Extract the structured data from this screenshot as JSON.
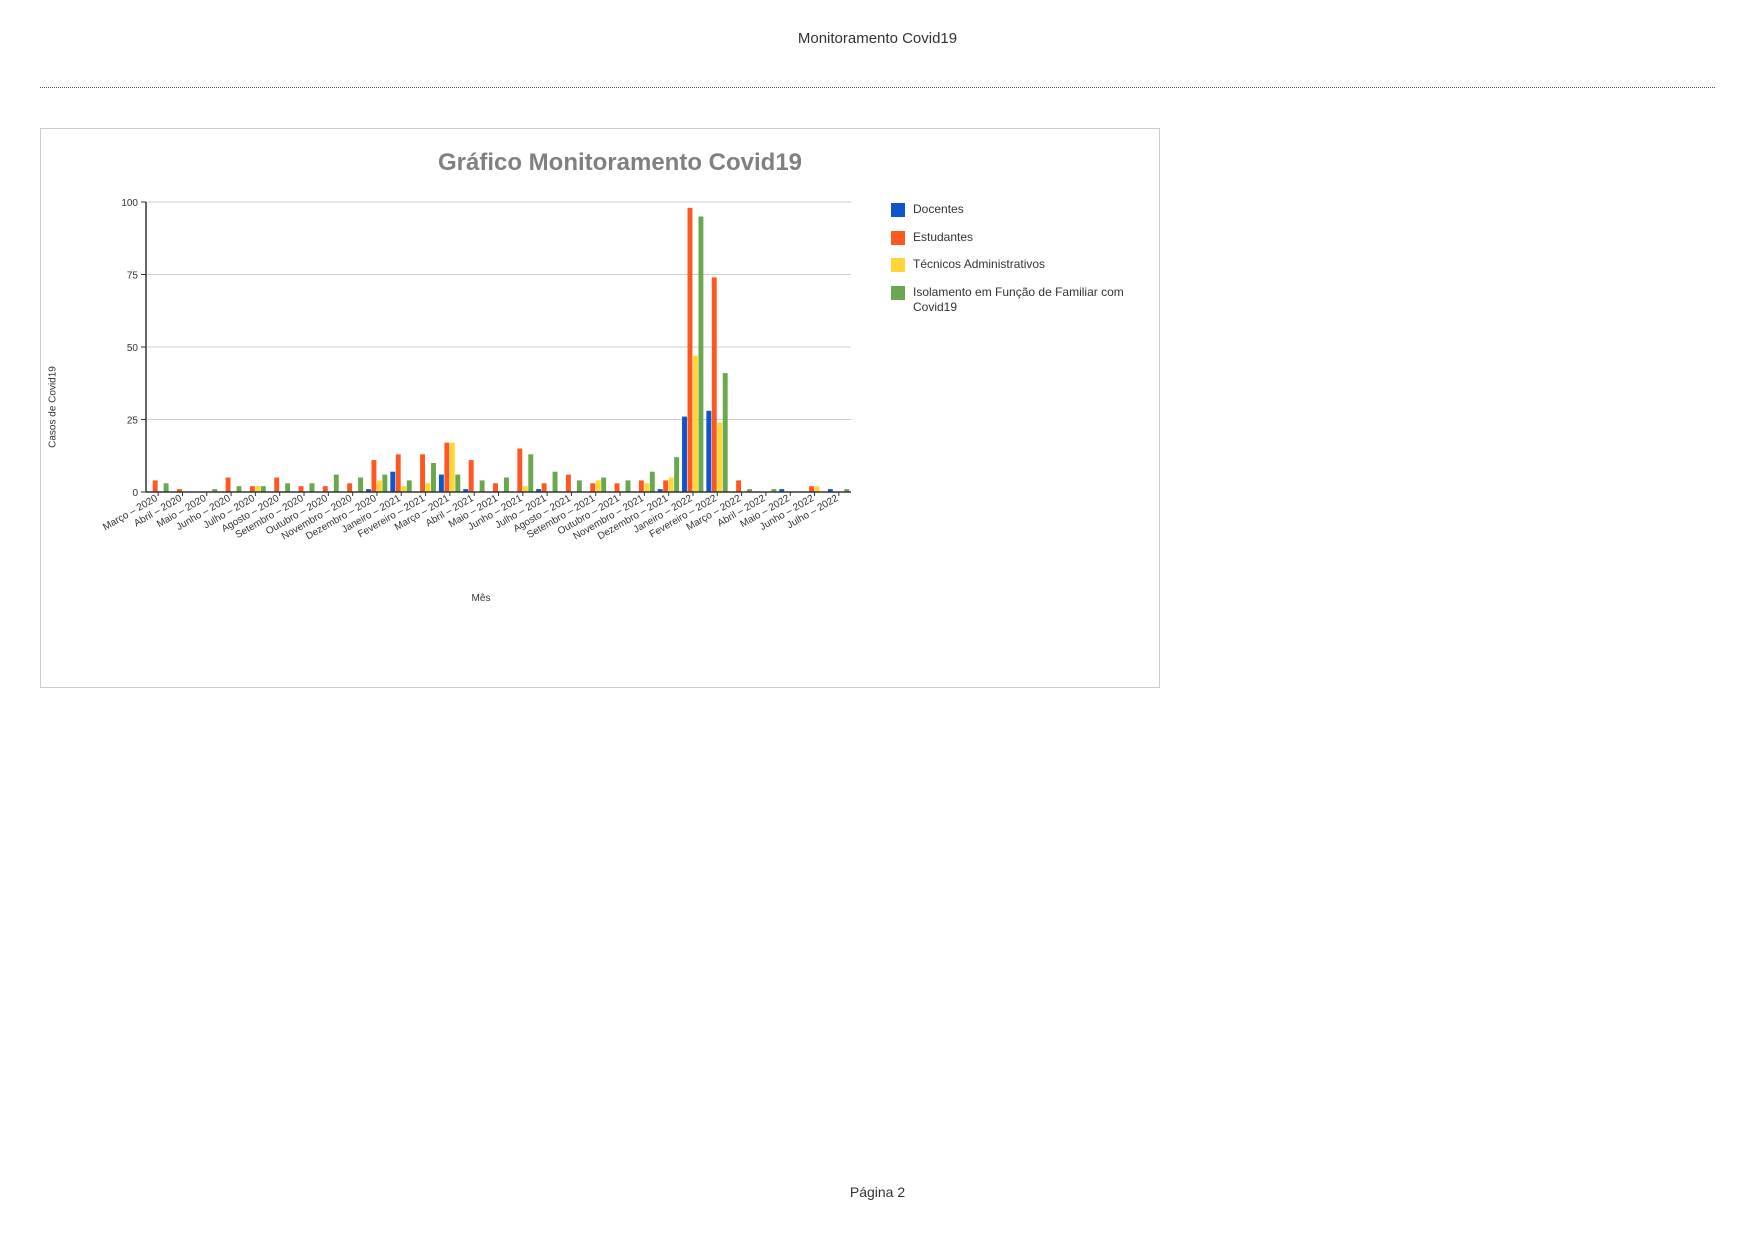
{
  "doc_header": "Monitoramento Covid19",
  "page_footer": "Página 2",
  "chart": {
    "type": "bar",
    "title": "Gráfico Monitoramento Covid19",
    "title_color": "#808080",
    "title_fontsize": 24,
    "x_axis_title": "Mês",
    "y_axis_title": "Casos de Covid19",
    "ylim": [
      0,
      100
    ],
    "ytick_step": 25,
    "yticks": [
      0,
      25,
      50,
      75,
      100
    ],
    "background_color": "#ffffff",
    "axis_color": "#333333",
    "grid_color": "#cccccc",
    "grid": true,
    "border_color": "#cccccc",
    "tick_label_fontsize": 10,
    "xlabel_rotation_deg": -30,
    "bar_group_width": 0.9,
    "categories": [
      "Março – 2020",
      "Abril – 2020",
      "Maio – 2020",
      "Junho – 2020",
      "Julho – 2020",
      "Agosto – 2020",
      "Setembro – 2020",
      "Outubro – 2020",
      "Novembro – 2020",
      "Dezembro – 2020",
      "Janeiro – 2021",
      "Fevereiro – 2021",
      "Março – 2021",
      "Abril – 2021",
      "Maio – 2021",
      "Junho – 2021",
      "Julho – 2021",
      "Agosto – 2021",
      "Setembro – 2021",
      "Outubro – 2021",
      "Novembro – 2021",
      "Dezembro – 2021",
      "Janeiro – 2022",
      "Fevereiro – 2022",
      "Março – 2022",
      "Abril – 2022",
      "Maio – 2022",
      "Junho – 2022",
      "Julho – 2022"
    ],
    "series": [
      {
        "name": "Docentes",
        "color": "#1155cc",
        "values": [
          0,
          0,
          0,
          0,
          0,
          0,
          0,
          0,
          0,
          1,
          7,
          0,
          6,
          1,
          0,
          0,
          1,
          0,
          0,
          0,
          0,
          1,
          26,
          28,
          0,
          0,
          1,
          0,
          1
        ]
      },
      {
        "name": "Estudantes",
        "color": "#ff5722",
        "values": [
          4,
          1,
          0,
          5,
          2,
          5,
          2,
          2,
          3,
          11,
          13,
          13,
          17,
          11,
          3,
          15,
          3,
          6,
          3,
          3,
          4,
          4,
          98,
          74,
          4,
          0,
          0,
          2,
          0
        ]
      },
      {
        "name": "Técnicos Administrativos",
        "color": "#ffd633",
        "values": [
          0,
          0,
          0,
          0,
          2,
          0,
          0,
          0,
          0,
          4,
          2,
          3,
          17,
          0,
          0,
          2,
          0,
          0,
          4,
          0,
          3,
          5,
          47,
          24,
          0,
          0,
          0,
          2,
          0
        ]
      },
      {
        "name": "Isolamento em Função de Familiar com Covid19",
        "color": "#6aa84f",
        "values": [
          3,
          0,
          1,
          2,
          2,
          3,
          3,
          6,
          5,
          6,
          4,
          10,
          6,
          4,
          5,
          13,
          7,
          4,
          5,
          4,
          7,
          12,
          95,
          41,
          1,
          1,
          0,
          0,
          1
        ]
      }
    ]
  }
}
